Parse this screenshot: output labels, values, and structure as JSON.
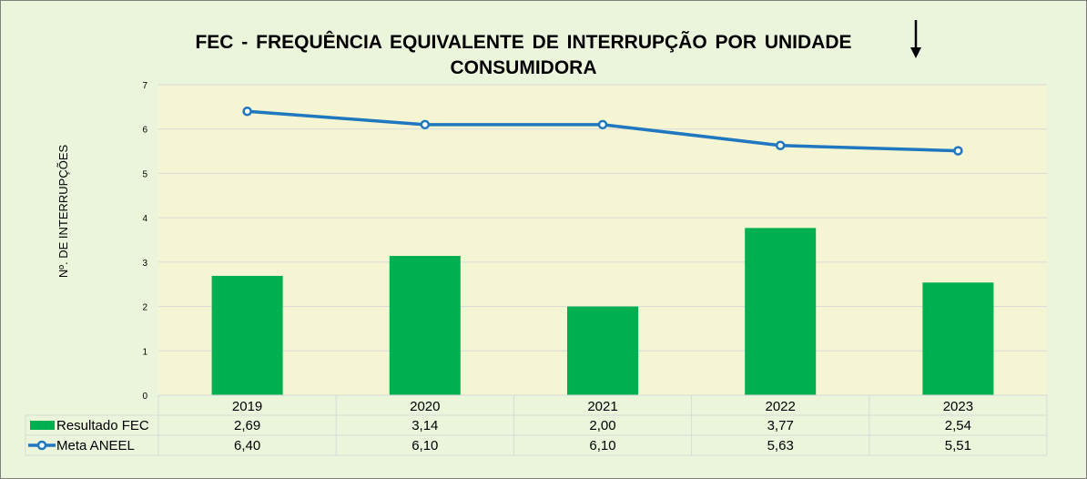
{
  "chart_data": {
    "type": "bar",
    "title_line1": "FEC - FREQUÊNCIA EQUIVALENTE DE INTERRUPÇÃO POR UNIDADE",
    "title_line2": "CONSUMIDORA",
    "ylabel": "Nº. DE INTERRUPÇÕES",
    "ylim": [
      0,
      7
    ],
    "yticks": [
      "0",
      "1",
      "2",
      "3",
      "4",
      "5",
      "6",
      "7"
    ],
    "categories": [
      "2019",
      "2020",
      "2021",
      "2022",
      "2023"
    ],
    "series": [
      {
        "name": "Resultado FEC",
        "type": "bar",
        "color": "#00b050",
        "values": [
          2.69,
          3.14,
          2.0,
          3.77,
          2.54
        ],
        "labels": [
          "2,69",
          "3,14",
          "2,00",
          "3,77",
          "2,54"
        ]
      },
      {
        "name": "Meta ANEEL",
        "type": "line",
        "color": "#1f77bf",
        "values": [
          6.4,
          6.1,
          6.1,
          5.63,
          5.51
        ],
        "labels": [
          "6,40",
          "6,10",
          "6,10",
          "5,63",
          "5,51"
        ]
      }
    ],
    "grid": true,
    "legend": "data-table",
    "plot_background": "#f5f5d3",
    "annotation": "down-arrow-icon"
  }
}
